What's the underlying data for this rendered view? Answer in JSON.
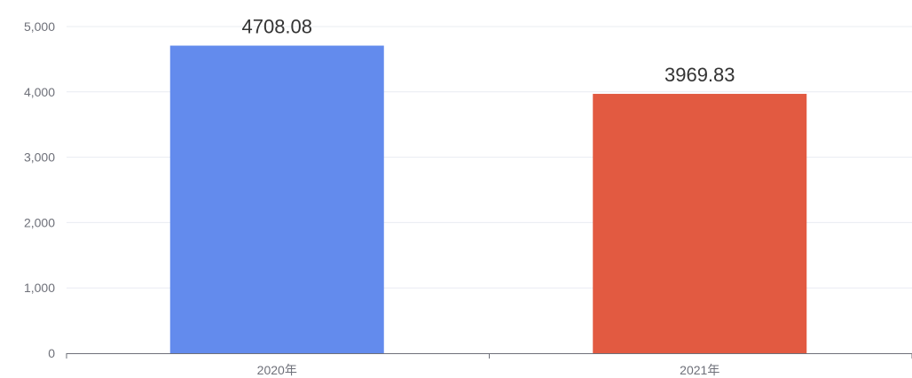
{
  "chart_data": {
    "type": "bar",
    "title": "",
    "xlabel": "",
    "ylabel": "",
    "categories": [
      "2020年",
      "2021年"
    ],
    "values": [
      4708.08,
      3969.83
    ],
    "value_labels": [
      "4708.08",
      "3969.83"
    ],
    "bar_colors": [
      "#638bed",
      "#e25a41"
    ],
    "ylim": [
      0,
      5000
    ],
    "y_ticks": [
      0,
      1000,
      2000,
      3000,
      4000,
      5000
    ],
    "y_tick_labels": [
      "0",
      "1,000",
      "2,000",
      "3,000",
      "4,000",
      "5,000"
    ],
    "grid": true,
    "legend": false
  }
}
